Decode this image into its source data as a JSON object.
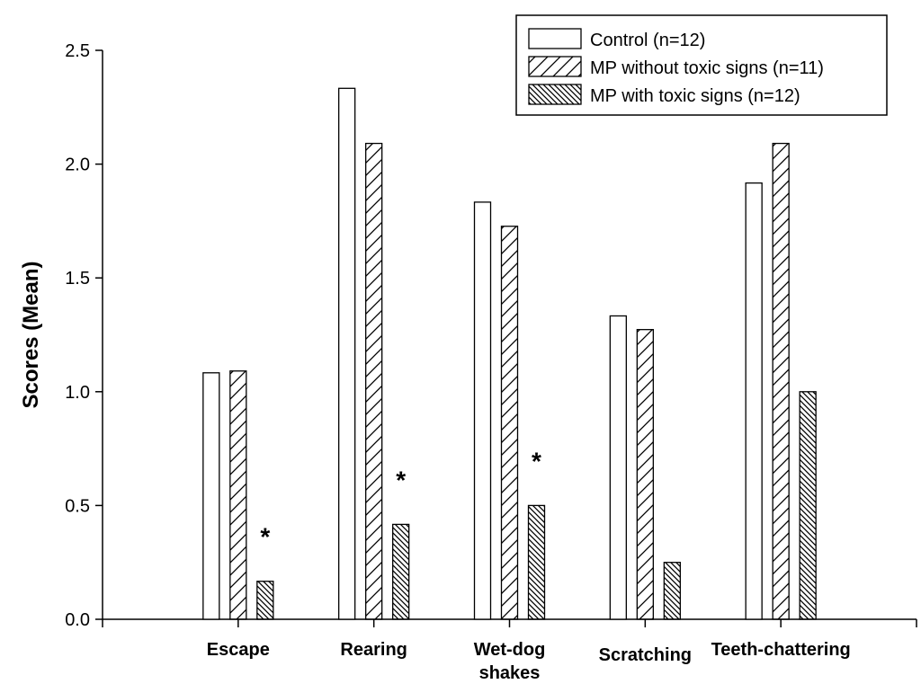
{
  "chart_data": {
    "type": "bar",
    "title": "",
    "xlabel": "",
    "ylabel": "Scores (Mean)",
    "ylim": [
      0,
      2.5
    ],
    "yticks": [
      "0.0",
      "0.5",
      "1.0",
      "1.5",
      "2.0",
      "2.5"
    ],
    "grid": false,
    "legend_position": "top-right",
    "categories": [
      [
        "Escape"
      ],
      [
        "Rearing"
      ],
      [
        "Wet-dog",
        "shakes"
      ],
      [
        "Scratching"
      ],
      [
        "Teeth-chattering"
      ]
    ],
    "series": [
      {
        "name": "Control (n=12)",
        "pattern": "none",
        "values": [
          1.083,
          2.333,
          1.833,
          1.333,
          1.917
        ]
      },
      {
        "name": "MP without toxic signs (n=11)",
        "pattern": "sparse-diagonal",
        "values": [
          1.091,
          2.091,
          1.727,
          1.273,
          2.091
        ]
      },
      {
        "name": "MP with toxic signs (n=12)",
        "pattern": "dense-diagonal",
        "values": [
          0.167,
          0.417,
          0.5,
          0.25,
          1.0
        ]
      }
    ],
    "annotations": [
      {
        "text": "*",
        "category_index": 0,
        "series_index": 2
      },
      {
        "text": "*",
        "category_index": 1,
        "series_index": 2
      },
      {
        "text": "*",
        "category_index": 2,
        "series_index": 2
      }
    ]
  }
}
